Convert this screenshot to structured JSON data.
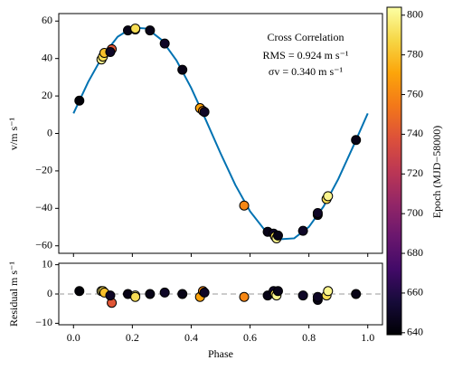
{
  "chart_data": [
    {
      "type": "scatter",
      "ylabel": "v/m s⁻¹",
      "annotations": [
        "Cross Correlation",
        "RMS = 0.924 m s⁻¹",
        "σv = 0.340 m s⁻¹"
      ],
      "x": [
        0.02,
        0.095,
        0.1,
        0.105,
        0.13,
        0.125,
        0.185,
        0.21,
        0.21,
        0.26,
        0.31,
        0.37,
        0.43,
        0.44,
        0.445,
        0.58,
        0.66,
        0.68,
        0.685,
        0.69,
        0.695,
        0.78,
        0.83,
        0.83,
        0.86,
        0.865,
        0.96
      ],
      "values": [
        17.5,
        39.5,
        41,
        43,
        45,
        43.5,
        55,
        55.5,
        56,
        55,
        48,
        34,
        13.5,
        12,
        11.5,
        -38.5,
        -52.5,
        -53.5,
        -55,
        -56,
        -54.5,
        -52,
        -43.5,
        -42.5,
        -35,
        -33.5,
        -3.5
      ],
      "c": [
        640,
        800,
        790,
        780,
        740,
        650,
        645,
        800,
        790,
        645,
        650,
        645,
        770,
        760,
        650,
        760,
        645,
        650,
        790,
        800,
        645,
        650,
        645,
        650,
        790,
        800,
        645
      ],
      "colormap": "inferno",
      "model_x": [
        0,
        0.05,
        0.1,
        0.15,
        0.2,
        0.25,
        0.3,
        0.35,
        0.4,
        0.45,
        0.5,
        0.55,
        0.6,
        0.65,
        0.7,
        0.75,
        0.8,
        0.85,
        0.9,
        0.95,
        1
      ],
      "model_values": [
        10.7,
        27.5,
        41.6,
        51.6,
        56.5,
        56.0,
        49.9,
        39.0,
        24.3,
        7.1,
        -10.7,
        -27.5,
        -41.6,
        -51.6,
        -56.5,
        -56.0,
        -49.9,
        -39.0,
        -24.3,
        -7.1,
        10.7
      ],
      "model_color": "#0072b2",
      "xlim": [
        -0.05,
        1.05
      ],
      "xticks": [
        0,
        0.2,
        0.4,
        0.6,
        0.8,
        1
      ],
      "ylim": [
        -64,
        64
      ],
      "yticks": [
        {
          "value": -60,
          "label": "−60"
        },
        {
          "value": -40,
          "label": "−40"
        },
        {
          "value": -20,
          "label": "−20"
        },
        0,
        20,
        40,
        60
      ],
      "colorbar": {
        "label": "Epoch (MJD−58000)",
        "lim": [
          639,
          804
        ],
        "ticks": [
          640,
          660,
          680,
          700,
          720,
          740,
          760,
          780,
          800
        ]
      }
    },
    {
      "type": "scatter",
      "xlabel": "Phase",
      "ylabel": "Residual m s⁻¹",
      "x": [
        0.02,
        0.095,
        0.1,
        0.105,
        0.13,
        0.125,
        0.185,
        0.21,
        0.21,
        0.26,
        0.31,
        0.37,
        0.43,
        0.44,
        0.445,
        0.58,
        0.66,
        0.68,
        0.685,
        0.69,
        0.695,
        0.78,
        0.83,
        0.83,
        0.86,
        0.865,
        0.96
      ],
      "values": [
        1,
        1,
        1,
        0.5,
        -3,
        -0.5,
        0,
        -0.5,
        -1,
        0,
        0.5,
        0,
        -1,
        1,
        0.5,
        -1,
        -0.5,
        1,
        0,
        -0.5,
        1,
        -0.5,
        -2,
        -1,
        -0.5,
        1,
        0
      ],
      "hline": 0,
      "xlim": [
        -0.05,
        1.05
      ],
      "xticks": [
        {
          "value": 0,
          "label": "0.0"
        },
        0.2,
        0.4,
        0.6,
        0.8,
        {
          "value": 1,
          "label": "1.0"
        }
      ],
      "ylim": [
        -10.5,
        10.5
      ],
      "yticks": [
        {
          "value": -10,
          "label": "−10"
        },
        0,
        10
      ]
    }
  ]
}
